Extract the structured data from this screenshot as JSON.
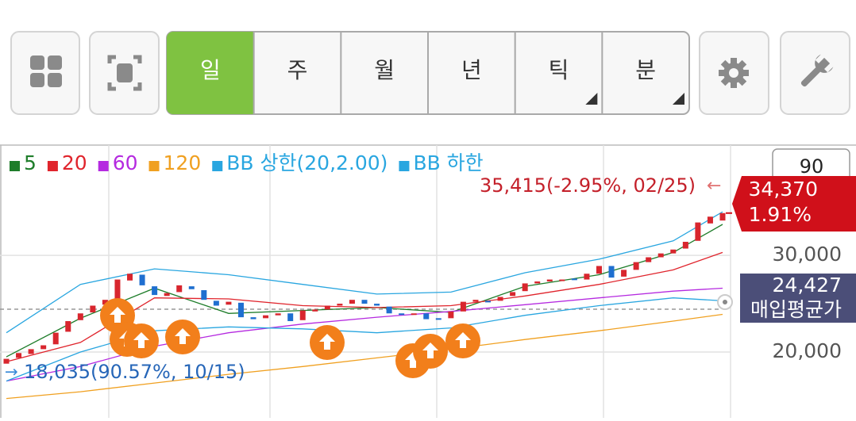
{
  "toolbar": {
    "tabs": [
      "일",
      "주",
      "월",
      "년",
      "틱",
      "분"
    ]
  },
  "period_input": "90",
  "chart_data": {
    "type": "candlestick",
    "ylim": [
      13200,
      41400
    ],
    "yticks": [
      {
        "value": 20000,
        "label": "20,000"
      },
      {
        "value": 30000,
        "label": "30,000"
      }
    ],
    "grid": true,
    "open": [
      18800,
      19400,
      19800,
      20300,
      20800,
      22100,
      23300,
      24100,
      24900,
      25500,
      27400,
      28000,
      26800,
      25800,
      26200,
      26800,
      26400,
      25300,
      24900,
      25100,
      23600,
      23500,
      23800,
      24000,
      23300,
      24200,
      24400,
      24800,
      25000,
      25400,
      25000,
      24700,
      24000,
      23900,
      24000,
      23500,
      23500,
      24200,
      25200,
      25300,
      25300,
      25800,
      26300,
      27100,
      27300,
      27400,
      27600,
      27500,
      28100,
      28900,
      27800,
      28500,
      29300,
      29800,
      30200,
      30700,
      31500,
      33300,
      33600
    ],
    "close": [
      19300,
      19900,
      20300,
      20700,
      22000,
      23200,
      24000,
      24800,
      25400,
      27500,
      28100,
      26900,
      25900,
      26100,
      26900,
      26500,
      25400,
      24800,
      25200,
      23600,
      23400,
      23800,
      24000,
      23200,
      24300,
      24400,
      24800,
      25000,
      25400,
      25000,
      24800,
      24000,
      23900,
      24000,
      23400,
      23400,
      24200,
      25200,
      25400,
      25200,
      25700,
      26200,
      27100,
      27300,
      27500,
      27500,
      27500,
      28100,
      28900,
      27700,
      28500,
      29300,
      29800,
      30200,
      30600,
      31400,
      33400,
      34000,
      34370
    ],
    "up_color": "#d8262e",
    "down_color": "#1f6fd0",
    "ma_index": [
      0,
      6,
      12,
      18,
      24,
      30,
      36,
      42,
      48,
      54,
      58
    ],
    "series": [
      {
        "name": "5",
        "color": "#1e7d2a",
        "values": [
          19500,
          23500,
          26600,
          24000,
          24300,
          24600,
          24100,
          26800,
          28000,
          30300,
          33200
        ]
      },
      {
        "name": "20",
        "color": "#e0242c",
        "values": [
          19000,
          21000,
          25600,
          25500,
          24800,
          24600,
          24800,
          25800,
          27000,
          28500,
          30300
        ]
      },
      {
        "name": "60",
        "color": "#b52ae0",
        "values": [
          17000,
          18500,
          20600,
          22000,
          22900,
          23600,
          24200,
          24900,
          25600,
          26300,
          26600
        ]
      },
      {
        "name": "120",
        "color": "#f0a020",
        "values": [
          15200,
          15900,
          16800,
          17700,
          18500,
          19400,
          20300,
          21300,
          22200,
          23200,
          23900
        ]
      },
      {
        "name": "BB 상한(20,2.00)",
        "color": "#29a6e0",
        "values": [
          22000,
          27000,
          28600,
          28000,
          27000,
          26000,
          26200,
          28200,
          29600,
          31500,
          34500
        ]
      },
      {
        "name": "BB 하한",
        "color": "#29a6e0",
        "values": [
          17000,
          20000,
          22200,
          22600,
          22400,
          22000,
          22500,
          23800,
          24800,
          25600,
          25300
        ]
      }
    ],
    "high_label": "35,415(-2.95%, 02/25)",
    "low_label": "18,035(90.57%, 10/15)",
    "current_price": {
      "value": 34370,
      "label": "34,370"
    },
    "current_change": "1.91%",
    "avg_price": {
      "value": 24427,
      "label": "24,427"
    },
    "avg_price_title": "매입평균가"
  }
}
